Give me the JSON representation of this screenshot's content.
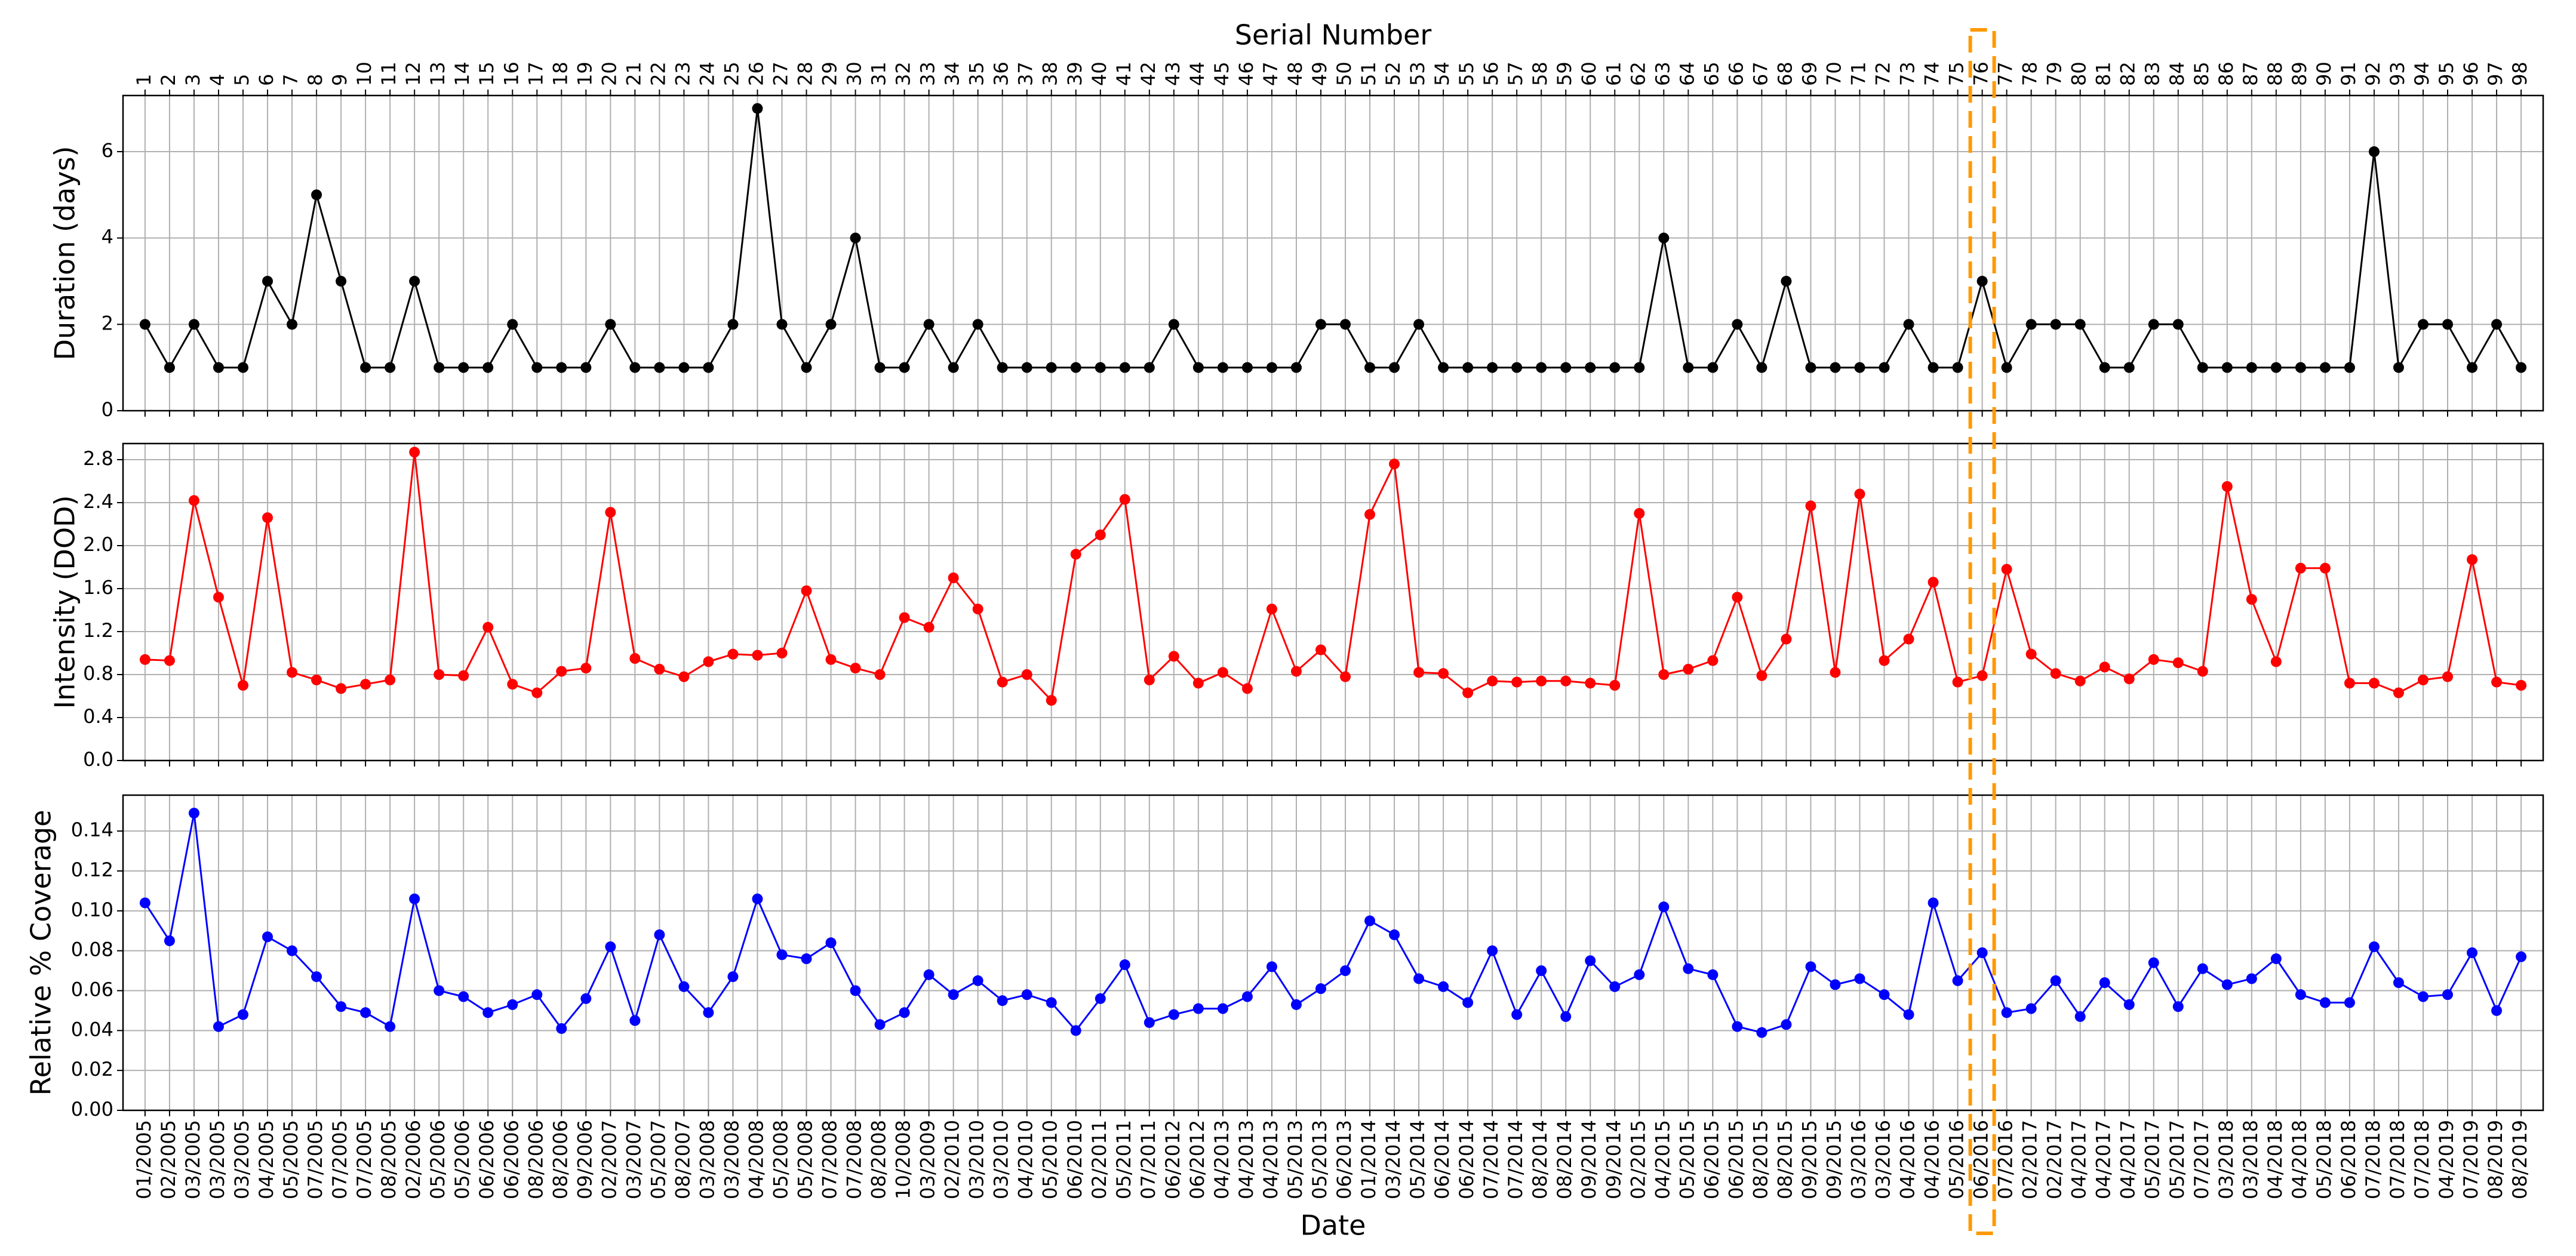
{
  "chart_data": [
    {
      "type": "line",
      "y_label": "Duration (days)",
      "x_label_top": "Serial Number",
      "top_categories": [
        1,
        2,
        3,
        4,
        5,
        6,
        7,
        8,
        9,
        10,
        11,
        12,
        13,
        14,
        15,
        16,
        17,
        18,
        19,
        20,
        21,
        22,
        23,
        24,
        25,
        26,
        27,
        28,
        29,
        30,
        31,
        32,
        33,
        34,
        35,
        36,
        37,
        38,
        39,
        40,
        41,
        42,
        43,
        44,
        45,
        46,
        47,
        48,
        49,
        50,
        51,
        52,
        53,
        54,
        55,
        56,
        57,
        58,
        59,
        60,
        61,
        62,
        63,
        64,
        65,
        66,
        67,
        68,
        69,
        70,
        71,
        72,
        73,
        74,
        75,
        76,
        77,
        78,
        79,
        80,
        81,
        82,
        83,
        84,
        85,
        86,
        87,
        88,
        89,
        90,
        91,
        92,
        93,
        94,
        95,
        96,
        97,
        98
      ],
      "highlight_serial": 76,
      "color": "#000000",
      "values": [
        2,
        1,
        2,
        1,
        1,
        3,
        2,
        5,
        3,
        1,
        1,
        3,
        1,
        1,
        1,
        2,
        1,
        1,
        1,
        2,
        1,
        1,
        1,
        1,
        2,
        7,
        2,
        1,
        2,
        4,
        1,
        1,
        2,
        1,
        2,
        1,
        1,
        1,
        1,
        1,
        1,
        1,
        2,
        1,
        1,
        1,
        1,
        1,
        2,
        2,
        1,
        1,
        2,
        1,
        1,
        1,
        1,
        1,
        1,
        1,
        1,
        1,
        4,
        1,
        1,
        2,
        1,
        3,
        1,
        1,
        1,
        1,
        2,
        1,
        1,
        3,
        1,
        2,
        2,
        2,
        1,
        1,
        2,
        2,
        1,
        1,
        1,
        1,
        1,
        1,
        1,
        6,
        1,
        2,
        2,
        1,
        2,
        1
      ],
      "ylim": [
        0,
        7.3
      ],
      "yticks": [
        0,
        2,
        4,
        6
      ],
      "grid": true
    },
    {
      "type": "line",
      "y_label": "Intensity (DOD)",
      "color": "#ff0000",
      "values": [
        0.94,
        0.93,
        2.42,
        1.52,
        0.7,
        2.26,
        0.82,
        0.75,
        0.67,
        0.71,
        0.75,
        2.87,
        0.8,
        0.79,
        1.24,
        0.71,
        0.63,
        0.83,
        0.86,
        2.31,
        0.95,
        0.85,
        0.78,
        0.92,
        0.99,
        0.98,
        1.0,
        1.58,
        0.94,
        0.86,
        0.8,
        1.33,
        1.24,
        1.7,
        1.41,
        0.73,
        0.8,
        0.56,
        1.92,
        2.1,
        2.43,
        0.75,
        0.97,
        0.72,
        0.82,
        0.67,
        1.41,
        0.83,
        1.03,
        0.78,
        2.29,
        2.76,
        0.82,
        0.81,
        0.63,
        0.74,
        0.73,
        0.74,
        0.74,
        0.72,
        0.7,
        2.3,
        0.8,
        0.85,
        0.93,
        1.52,
        0.79,
        1.13,
        2.37,
        0.82,
        2.48,
        0.93,
        1.13,
        1.66,
        0.73,
        0.79,
        1.78,
        0.99,
        0.81,
        0.74,
        0.87,
        0.76,
        0.94,
        0.91,
        0.83,
        2.55,
        1.5,
        0.92,
        1.79,
        1.79,
        0.72,
        0.72,
        0.63,
        0.75,
        0.78,
        1.87,
        0.73,
        0.7
      ],
      "ylim": [
        0,
        2.95
      ],
      "yticks": [
        {
          "value": 0,
          "label": "0.0"
        },
        0.4,
        0.8,
        1.2,
        1.6,
        {
          "value": 2,
          "label": "2.0"
        },
        2.4,
        2.8
      ],
      "grid": true
    },
    {
      "type": "line",
      "y_label": "Relative % Coverage",
      "x_label": "Date",
      "color": "#0000ff",
      "categories": [
        "01/2005",
        "02/2005",
        "03/2005",
        "03/2005",
        "03/2005",
        "04/2005",
        "05/2005",
        "07/2005",
        "07/2005",
        "07/2005",
        "08/2005",
        "02/2006",
        "05/2006",
        "05/2006",
        "06/2006",
        "06/2006",
        "08/2006",
        "08/2006",
        "09/2006",
        "02/2007",
        "03/2007",
        "05/2007",
        "08/2007",
        "03/2008",
        "03/2008",
        "04/2008",
        "05/2008",
        "05/2008",
        "07/2008",
        "07/2008",
        "08/2008",
        "10/2008",
        "03/2009",
        "02/2010",
        "03/2010",
        "03/2010",
        "04/2010",
        "05/2010",
        "06/2010",
        "02/2011",
        "05/2011",
        "07/2011",
        "06/2012",
        "06/2012",
        "04/2013",
        "04/2013",
        "04/2013",
        "05/2013",
        "05/2013",
        "06/2013",
        "01/2014",
        "03/2014",
        "05/2014",
        "06/2014",
        "06/2014",
        "07/2014",
        "07/2014",
        "08/2014",
        "08/2014",
        "09/2014",
        "09/2014",
        "02/2015",
        "04/2015",
        "05/2015",
        "06/2015",
        "06/2015",
        "08/2015",
        "08/2015",
        "09/2015",
        "09/2015",
        "03/2016",
        "03/2016",
        "04/2016",
        "04/2016",
        "05/2016",
        "06/2016",
        "07/2016",
        "02/2017",
        "02/2017",
        "04/2017",
        "04/2017",
        "04/2017",
        "05/2017",
        "05/2017",
        "07/2017",
        "03/2018",
        "03/2018",
        "04/2018",
        "04/2018",
        "05/2018",
        "06/2018",
        "07/2018",
        "07/2018",
        "07/2018",
        "04/2019",
        "07/2019",
        "08/2019",
        "08/2019"
      ],
      "values": [
        0.104,
        0.085,
        0.149,
        0.042,
        0.048,
        0.087,
        0.08,
        0.067,
        0.052,
        0.049,
        0.042,
        0.106,
        0.06,
        0.057,
        0.049,
        0.053,
        0.058,
        0.041,
        0.056,
        0.082,
        0.045,
        0.088,
        0.062,
        0.049,
        0.067,
        0.106,
        0.078,
        0.076,
        0.084,
        0.06,
        0.043,
        0.049,
        0.068,
        0.058,
        0.065,
        0.055,
        0.058,
        0.054,
        0.04,
        0.056,
        0.073,
        0.044,
        0.048,
        0.051,
        0.051,
        0.057,
        0.072,
        0.053,
        0.061,
        0.07,
        0.095,
        0.088,
        0.066,
        0.062,
        0.054,
        0.08,
        0.048,
        0.07,
        0.047,
        0.075,
        0.062,
        0.068,
        0.102,
        0.071,
        0.068,
        0.042,
        0.039,
        0.043,
        0.072,
        0.063,
        0.066,
        0.058,
        0.048,
        0.104,
        0.065,
        0.079,
        0.049,
        0.051,
        0.065,
        0.047,
        0.064,
        0.053,
        0.074,
        0.052,
        0.071,
        0.063,
        0.066,
        0.076,
        0.058,
        0.054,
        0.054,
        0.082,
        0.064,
        0.057,
        0.058,
        0.079,
        0.05,
        0.077
      ],
      "ylim": [
        0,
        0.158
      ],
      "yticks": [
        {
          "value": 0,
          "label": "0.00"
        },
        {
          "value": 0.02,
          "label": "0.02"
        },
        {
          "value": 0.04,
          "label": "0.04"
        },
        {
          "value": 0.06,
          "label": "0.06"
        },
        {
          "value": 0.08,
          "label": "0.08"
        },
        {
          "value": 0.1,
          "label": "0.10"
        },
        {
          "value": 0.12,
          "label": "0.12"
        },
        {
          "value": 0.14,
          "label": "0.14"
        }
      ],
      "grid": true
    }
  ]
}
